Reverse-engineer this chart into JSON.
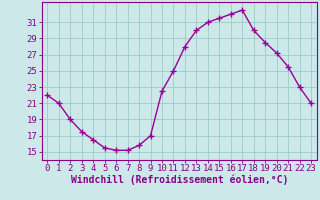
{
  "x": [
    0,
    1,
    2,
    3,
    4,
    5,
    6,
    7,
    8,
    9,
    10,
    11,
    12,
    13,
    14,
    15,
    16,
    17,
    18,
    19,
    20,
    21,
    22,
    23
  ],
  "y": [
    22,
    21,
    19,
    17.5,
    16.5,
    15.5,
    15.2,
    15.2,
    15.8,
    17.0,
    22.5,
    25.0,
    28.0,
    30.0,
    31.0,
    31.5,
    32.0,
    32.5,
    30.0,
    28.5,
    27.2,
    25.5,
    23.0,
    21.0
  ],
  "line_color": "#990099",
  "marker": "+",
  "bg_color": "#cce8e8",
  "grid_color": "#99cccc",
  "xlabel": "Windchill (Refroidissement éolien,°C)",
  "yticks": [
    15,
    17,
    19,
    21,
    23,
    25,
    27,
    29,
    31
  ],
  "xtick_labels": [
    "0",
    "1",
    "2",
    "3",
    "4",
    "5",
    "6",
    "7",
    "8",
    "9",
    "10",
    "11",
    "12",
    "13",
    "14",
    "15",
    "16",
    "17",
    "18",
    "19",
    "20",
    "21",
    "22",
    "23"
  ],
  "ylim": [
    14.0,
    33.5
  ],
  "xlim": [
    -0.5,
    23.5
  ],
  "text_color": "#880088",
  "axis_color": "#880088",
  "xlabel_fontsize": 7.0,
  "tick_fontsize": 6.5,
  "line_width": 1.0,
  "marker_size": 4.5,
  "marker_edge_width": 1.0
}
